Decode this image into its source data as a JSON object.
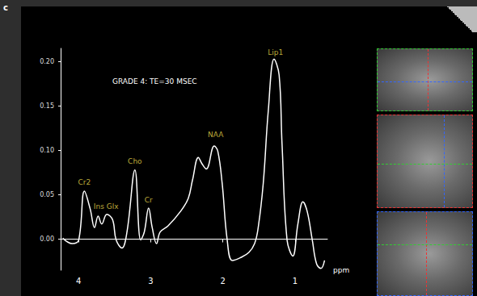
{
  "chart_data": {
    "type": "line",
    "title": "GRADE 4: TE=30 MSEC",
    "panel_label": "c",
    "x_label": "ppm",
    "x": [
      4.22,
      4.09,
      4.0,
      3.92,
      3.84,
      3.78,
      3.73,
      3.68,
      3.61,
      3.53,
      3.48,
      3.4,
      3.33,
      3.22,
      3.14,
      3.09,
      3.03,
      2.98,
      2.92,
      2.87,
      2.76,
      2.59,
      2.48,
      2.42,
      2.34,
      2.29,
      2.23,
      2.12,
      2.07,
      2.01,
      1.94,
      1.87,
      1.76,
      1.64,
      1.56,
      1.51,
      1.44,
      1.37,
      1.29,
      1.22,
      1.18,
      1.11,
      1.03,
      0.96,
      0.89,
      0.83,
      0.76,
      0.7,
      0.64,
      0.59
    ],
    "values": [
      0.001,
      -0.005,
      -0.001,
      0.054,
      0.034,
      0.013,
      0.026,
      0.017,
      0.028,
      0.022,
      -0.001,
      -0.01,
      0.008,
      0.078,
      -0.001,
      0.008,
      0.035,
      0.013,
      -0.005,
      0.008,
      0.015,
      0.031,
      0.046,
      0.067,
      0.092,
      0.085,
      0.079,
      0.105,
      0.099,
      0.063,
      -0.001,
      -0.024,
      -0.021,
      -0.015,
      -0.005,
      0.013,
      0.063,
      0.145,
      0.203,
      0.185,
      0.108,
      -0.001,
      -0.019,
      0.017,
      0.042,
      0.031,
      -0.001,
      -0.028,
      -0.033,
      -0.024
    ],
    "color": "#ffffff",
    "xlim": [
      4.25,
      0.55
    ],
    "xticks": [
      4,
      3,
      2,
      1
    ],
    "ylim": [
      -0.035,
      0.215
    ],
    "yticks": [
      {
        "value": 0,
        "label": "0.00"
      },
      {
        "value": 0.05,
        "label": "0.05"
      },
      {
        "value": 0.1,
        "label": "0.10"
      },
      {
        "value": 0.15,
        "label": "0.15"
      },
      {
        "value": 0.2,
        "label": "0.20"
      }
    ],
    "grid": false,
    "annotations": [
      {
        "text": "Cr2",
        "x": 3.92,
        "y": 0.058
      },
      {
        "text": "Ins Glx",
        "x": 3.62,
        "y": 0.031
      },
      {
        "text": "Cho",
        "x": 3.22,
        "y": 0.082
      },
      {
        "text": "Cr",
        "x": 3.03,
        "y": 0.038
      },
      {
        "text": "NAA",
        "x": 2.1,
        "y": 0.112
      },
      {
        "text": "Lip1",
        "x": 1.27,
        "y": 0.205
      }
    ]
  }
}
